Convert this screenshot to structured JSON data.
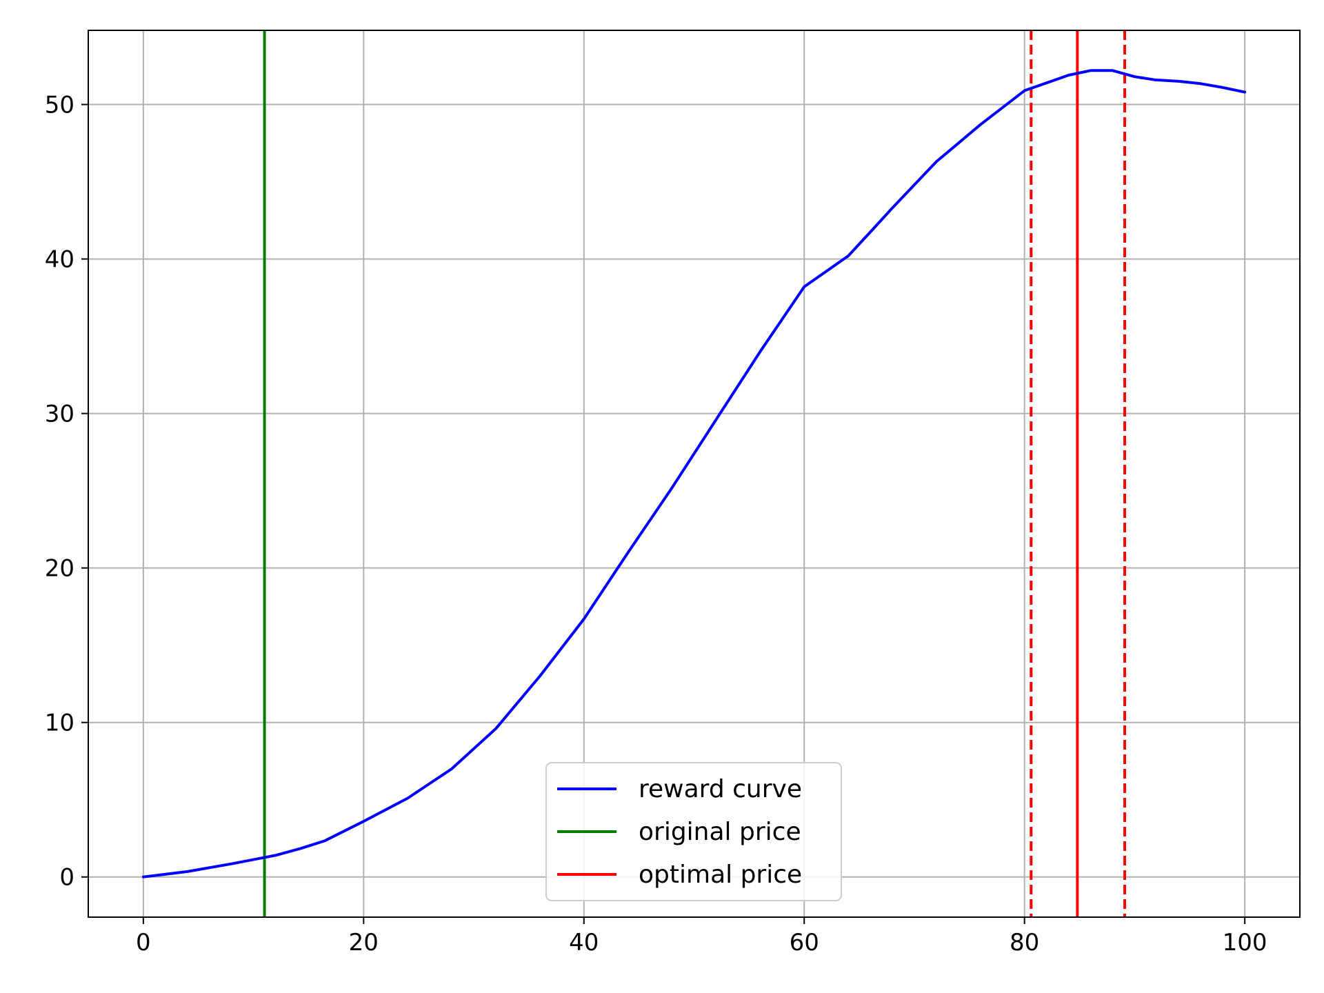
{
  "chart_data": {
    "type": "line",
    "title": "",
    "xlabel": "",
    "ylabel": "",
    "xlim": [
      -5,
      105
    ],
    "ylim": [
      -2.6,
      54.8
    ],
    "grid": true,
    "legend_placement": "lower center",
    "x_ticks": [
      0,
      20,
      40,
      60,
      80,
      100
    ],
    "x_tick_labels": [
      "0",
      "20",
      "40",
      "60",
      "80",
      "100"
    ],
    "y_ticks": [
      0,
      10,
      20,
      30,
      40,
      50
    ],
    "y_tick_labels": [
      "0",
      "10",
      "20",
      "30",
      "40",
      "50"
    ],
    "series": [
      {
        "name": "reward curve",
        "color": "#0000ff",
        "style": "solid",
        "x": [
          0,
          4,
          8,
          12,
          14.3,
          16.5,
          20,
          24,
          28,
          32,
          36,
          40,
          44,
          48,
          52,
          56,
          60,
          64,
          66.2,
          68,
          72,
          76,
          80,
          84,
          86,
          88,
          90,
          91.8,
          94,
          96,
          98,
          100
        ],
        "y": [
          0,
          0.35,
          0.85,
          1.4,
          1.85,
          2.35,
          3.6,
          5.1,
          7.0,
          9.6,
          13.0,
          16.7,
          21.0,
          25.2,
          29.6,
          34.0,
          38.2,
          40.2,
          41.9,
          43.3,
          46.3,
          48.7,
          50.9,
          51.9,
          52.2,
          52.2,
          51.8,
          51.6,
          51.5,
          51.35,
          51.1,
          50.8
        ]
      }
    ],
    "vertical_lines": [
      {
        "name": "original price",
        "x": 11,
        "color": "#008000",
        "style": "solid",
        "in_legend": true
      },
      {
        "name": "optimal price",
        "x": 84.8,
        "color": "#ff0000",
        "style": "solid",
        "in_legend": true
      },
      {
        "name": "",
        "x": 80.6,
        "color": "#ff0000",
        "style": "dashed",
        "in_legend": false
      },
      {
        "name": "",
        "x": 89.1,
        "color": "#ff0000",
        "style": "dashed",
        "in_legend": false
      }
    ],
    "legend": [
      {
        "label": "reward curve",
        "color": "#0000ff"
      },
      {
        "label": "original price",
        "color": "#008000"
      },
      {
        "label": "optimal price",
        "color": "#ff0000"
      }
    ]
  }
}
